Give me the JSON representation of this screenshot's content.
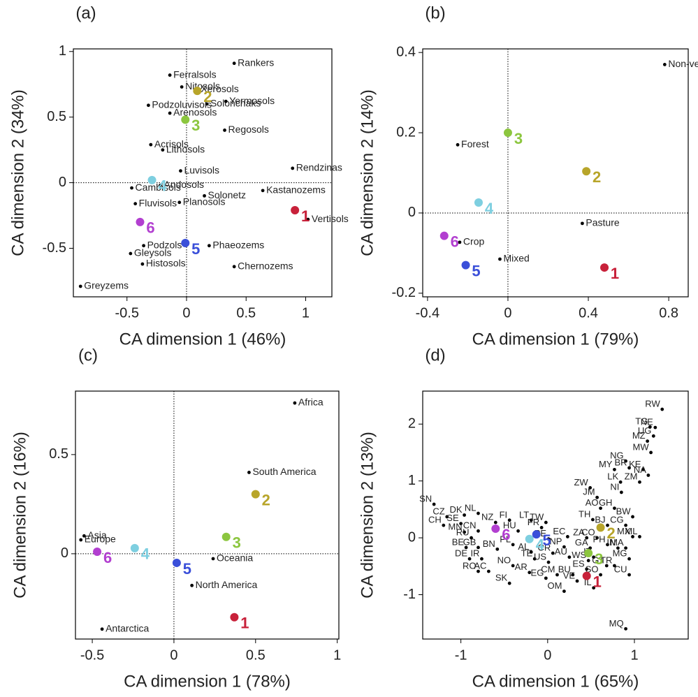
{
  "chart_data": [
    {
      "type": "scatter",
      "panel": "(a)",
      "xlabel": "CA dimension 1 (46%)",
      "ylabel": "CA dimension 2 (34%)",
      "xlim": [
        -0.95,
        1.22
      ],
      "ylim": [
        -0.87,
        1.02
      ],
      "xticks": [
        -0.5,
        0,
        0.5,
        1
      ],
      "yticks": [
        -0.5,
        0,
        0.5,
        1
      ],
      "origin_lines": true,
      "points": {
        "labels": [
          "Rankers",
          "Ferralsols",
          "Nitosols",
          "Xerosols",
          "Solonchaks",
          "Yermosols",
          "Podzoluvisols",
          "Arenosols",
          "Regosols",
          "Acrisols",
          "Lithosols",
          "Rendzinas",
          "Luvisols",
          "Andosols",
          "Cambisols",
          "Solonetz",
          "Kastanozems",
          "Vertisols",
          "Fluvisols",
          "Planosols",
          "Phaeozems",
          "Podzols",
          "Gleysols",
          "Histosols",
          "Chernozems",
          "Greyzems"
        ],
        "x": [
          0.4,
          -0.14,
          -0.04,
          0.09,
          0.17,
          0.33,
          -0.32,
          -0.14,
          0.32,
          -0.3,
          -0.2,
          0.89,
          -0.05,
          -0.22,
          -0.46,
          0.15,
          0.64,
          1.02,
          -0.43,
          -0.06,
          0.19,
          -0.36,
          -0.47,
          -0.37,
          0.4,
          -0.89
        ],
        "y": [
          0.91,
          0.82,
          0.73,
          0.71,
          0.6,
          0.62,
          0.59,
          0.53,
          0.4,
          0.29,
          0.25,
          0.11,
          0.09,
          -0.02,
          -0.04,
          -0.1,
          -0.06,
          -0.28,
          -0.16,
          -0.15,
          -0.48,
          -0.48,
          -0.54,
          -0.62,
          -0.64,
          -0.79
        ]
      },
      "clusters": {
        "labels": [
          "1",
          "2",
          "3",
          "4",
          "5",
          "6"
        ],
        "x": [
          0.91,
          0.09,
          -0.01,
          -0.29,
          -0.01,
          -0.39
        ],
        "y": [
          -0.21,
          0.7,
          0.48,
          0.02,
          -0.46,
          -0.3
        ],
        "colors": [
          "#c8213a",
          "#b8a52a",
          "#8cc63f",
          "#7ecfe0",
          "#3a4fd9",
          "#b23fd0"
        ]
      }
    },
    {
      "type": "scatter",
      "panel": "(b)",
      "xlabel": "CA dimension 1 (79%)",
      "ylabel": "CA dimension 2 (14%)",
      "xlim": [
        -0.424,
        0.897
      ],
      "ylim": [
        -0.209,
        0.409
      ],
      "xticks": [
        -0.4,
        0,
        0.4,
        0.8
      ],
      "yticks": [
        -0.2,
        0,
        0.2,
        0.4
      ],
      "origin_lines": true,
      "points": {
        "labels": [
          "Non-vegetated",
          "Forest",
          "Pasture",
          "Crop",
          "Mixed"
        ],
        "x": [
          0.78,
          -0.25,
          0.37,
          -0.24,
          -0.04
        ],
        "y": [
          0.37,
          0.17,
          -0.026,
          -0.073,
          -0.115
        ]
      },
      "clusters": {
        "labels": [
          "1",
          "2",
          "3",
          "4",
          "5",
          "6"
        ],
        "x": [
          0.48,
          0.39,
          0,
          -0.146,
          -0.21,
          -0.317
        ],
        "y": [
          -0.136,
          0.104,
          0.2,
          0.026,
          -0.13,
          -0.057
        ],
        "colors": [
          "#c8213a",
          "#b8a52a",
          "#8cc63f",
          "#7ecfe0",
          "#3a4fd9",
          "#b23fd0"
        ]
      }
    },
    {
      "type": "scatter",
      "panel": "(c)",
      "xlabel": "CA dimension 1 (78%)",
      "ylabel": "CA dimension 2 (16%)",
      "xlim": [
        -0.603,
        1.01
      ],
      "ylim": [
        -0.43,
        0.82
      ],
      "xticks": [
        -0.5,
        0,
        0.5,
        1
      ],
      "yticks": [
        0,
        0.5
      ],
      "origin_lines": true,
      "points": {
        "labels": [
          "Africa",
          "South America",
          "Asia",
          "Europe",
          "Oceania",
          "North America",
          "Antarctica"
        ],
        "x": [
          0.74,
          0.46,
          -0.55,
          -0.57,
          0.24,
          0.11,
          -0.44
        ],
        "y": [
          0.76,
          0.41,
          0.09,
          0.07,
          -0.025,
          -0.16,
          -0.38
        ]
      },
      "clusters": {
        "labels": [
          "1",
          "2",
          "3",
          "4",
          "5",
          "6"
        ],
        "x": [
          0.37,
          0.5,
          0.32,
          -0.24,
          0.017,
          -0.47
        ],
        "y": [
          -0.32,
          0.3,
          0.085,
          0.028,
          -0.046,
          0.01
        ],
        "colors": [
          "#c8213a",
          "#b8a52a",
          "#8cc63f",
          "#7ecfe0",
          "#3a4fd9",
          "#b23fd0"
        ]
      }
    },
    {
      "type": "scatter",
      "panel": "(d)",
      "xlabel": "CA dimension 1 (65%)",
      "ylabel": "CA dimension 2 (13%)",
      "xlim": [
        -1.44,
        1.62
      ],
      "ylim": [
        -1.78,
        2.58
      ],
      "xticks": [
        -1,
        0,
        1
      ],
      "yticks": [
        -1,
        0,
        1,
        2
      ],
      "origin_lines": false,
      "points": {
        "labels": [
          "RW",
          "TG",
          "NE",
          "UG",
          "MZ",
          "MW",
          "NG",
          "MY",
          "BR",
          "KE",
          "NA",
          "ZM",
          "LK",
          "NI",
          "ZW",
          "JM",
          "AO",
          "GH",
          "BW",
          "TH",
          "BJ",
          "CG",
          "EC",
          "ZA",
          "CO",
          "PH",
          "MX",
          "ML",
          "NP",
          "GA",
          "IN",
          "MA",
          "AU",
          "IT",
          "WS",
          "MG",
          "CU",
          "GT",
          "TR",
          "ES",
          "SO",
          "BU",
          "CM",
          "IL",
          "VE",
          "EG",
          "OM",
          "MQ",
          "SN",
          "CZ",
          "CH",
          "DK",
          "NL",
          "SE",
          "MN",
          "RU",
          "CN",
          "NZ",
          "FI",
          "HU",
          "LT",
          "FR",
          "TW",
          "PE",
          "BE",
          "GB",
          "BN",
          "PL",
          "DE",
          "IR",
          "RO",
          "AC",
          "NO",
          "AR",
          "TE",
          "US",
          "CR",
          "SK",
          "AL"
        ],
        "x": [
          1.32,
          1.18,
          1.24,
          1.22,
          1.15,
          1.19,
          0.9,
          0.77,
          0.94,
          1.1,
          1.16,
          1.06,
          0.84,
          0.85,
          0.49,
          0.57,
          0.61,
          0.77,
          0.98,
          0.52,
          0.69,
          0.9,
          0.23,
          0.45,
          0.57,
          0.69,
          0.98,
          1.06,
          0.19,
          0.49,
          0.81,
          0.9,
          0.25,
          0.53,
          0.47,
          0.94,
          0.94,
          0.68,
          0.77,
          0.45,
          0.61,
          0.29,
          0.11,
          0.53,
          0.34,
          -0.02,
          0.19,
          0.9,
          -1.31,
          -1.16,
          -1.2,
          -0.96,
          -0.8,
          -1.0,
          -0.96,
          -0.88,
          -0.8,
          -0.6,
          -0.44,
          -0.34,
          -0.19,
          -0.07,
          -0.02,
          0.01,
          -0.94,
          -0.8,
          -0.58,
          -0.4,
          -0.9,
          -0.76,
          -0.8,
          -0.68,
          -0.4,
          -0.21,
          -0.15,
          0.01,
          0.06,
          -0.44,
          -0.19
        ],
        "y": [
          2.26,
          1.95,
          1.94,
          1.79,
          1.7,
          1.5,
          1.35,
          1.2,
          1.23,
          1.2,
          1.1,
          0.98,
          0.98,
          0.8,
          0.88,
          0.71,
          0.52,
          0.52,
          0.37,
          0.32,
          0.22,
          0.22,
          0.02,
          0,
          0,
          -0.12,
          0.02,
          0.02,
          -0.16,
          -0.18,
          -0.18,
          -0.18,
          -0.34,
          -0.34,
          -0.4,
          -0.37,
          -0.65,
          -0.49,
          -0.49,
          -0.55,
          -0.65,
          -0.65,
          -0.65,
          -0.88,
          -0.76,
          -0.71,
          -0.94,
          -1.6,
          0.59,
          0.37,
          0.22,
          0.4,
          0.43,
          0.25,
          0.1,
          0,
          0.12,
          0.27,
          0.31,
          0.12,
          0.31,
          0.18,
          0.27,
          -0.02,
          -0.17,
          -0.17,
          -0.2,
          -0.12,
          -0.37,
          -0.37,
          -0.59,
          -0.59,
          -0.49,
          -0.61,
          -0.37,
          -0.43,
          -0.27,
          -0.8,
          -0.25
        ]
      },
      "clusters": {
        "labels": [
          "1",
          "2",
          "3",
          "4",
          "5",
          "6"
        ],
        "x": [
          0.45,
          0.61,
          0.47,
          -0.21,
          -0.13,
          -0.6
        ],
        "y": [
          -0.67,
          0.18,
          -0.27,
          -0.02,
          0.06,
          0.16
        ],
        "colors": [
          "#c8213a",
          "#b8a52a",
          "#8cc63f",
          "#7ecfe0",
          "#3a4fd9",
          "#b23fd0"
        ]
      }
    }
  ]
}
